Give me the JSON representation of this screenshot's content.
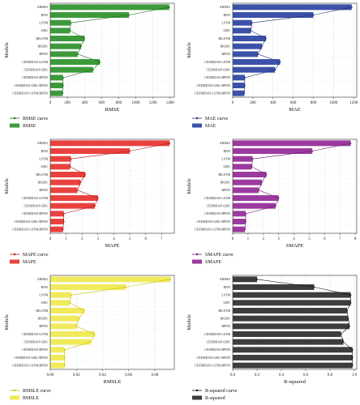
{
  "chart_data": [
    {
      "type": "bar",
      "title": "",
      "xlabel": "RMSE",
      "ylabel": "Models",
      "categories": [
        "ARIMA",
        "RNN",
        "LSTM",
        "GRU",
        "BILSTM",
        "BIGRU",
        "BPNN",
        "CEEMDAN-LSTM",
        "CEEMDAN-GRU",
        "CEEMDAN-BPNN",
        "CEEMDAN-GRU-BPNN",
        "CEEMDAN-LSTM-BPNN"
      ],
      "values": [
        1390,
        920,
        240,
        230,
        400,
        360,
        320,
        580,
        500,
        150,
        150,
        145
      ],
      "xlim": [
        0,
        1450
      ],
      "xticks": [
        0,
        200,
        400,
        600,
        800,
        1000,
        1200,
        1400
      ],
      "series": [
        {
          "name": "RMSE curve"
        },
        {
          "name": "RMSE"
        }
      ],
      "color": "#3c9a3a",
      "curve_color": "#1b6e1b",
      "grid": true,
      "legend": "bottom-left"
    },
    {
      "type": "bar",
      "title": "",
      "xlabel": "MAE",
      "ylabel": "Models",
      "categories": [
        "ARIMA",
        "RNN",
        "LSTM",
        "GRU",
        "BILSTM",
        "BIGRU",
        "BPNN",
        "CEEMDAN-LSTM",
        "CEEMDAN-GRU",
        "CEEMDAN-BPNN",
        "CEEMDAN-GRU-BPNN",
        "CEEMDAN-LSTM-BPNN"
      ],
      "values": [
        1180,
        800,
        190,
        180,
        330,
        290,
        250,
        470,
        420,
        120,
        120,
        115
      ],
      "xlim": [
        0,
        1230
      ],
      "xticks": [
        0,
        200,
        400,
        600,
        800,
        1000,
        1200
      ],
      "series": [
        {
          "name": "MAE curve"
        },
        {
          "name": "MAE"
        }
      ],
      "color": "#3c51a8",
      "curve_color": "#1e2f7a",
      "grid": true,
      "legend": "bottom-left"
    },
    {
      "type": "bar",
      "title": "",
      "xlabel": "MAPE",
      "ylabel": "Models",
      "categories": [
        "ARIMA",
        "RNN",
        "LSTM",
        "GRU",
        "BILSTM",
        "BIGRU",
        "BPNN",
        "CEEMDAN-LSTM",
        "CEEMDAN-GRU",
        "CEEMDAN-BPNN",
        "CEEMDAN-GRU-BPNN",
        "CEEMDAN-LSTM-BPNN"
      ],
      "values": [
        7.5,
        5.0,
        1.3,
        1.25,
        2.2,
        1.9,
        1.7,
        3.0,
        2.8,
        0.85,
        0.85,
        0.8
      ],
      "xlim": [
        0,
        7.8
      ],
      "xticks": [
        0,
        1,
        2,
        3,
        4,
        5,
        6,
        7
      ],
      "series": [
        {
          "name": "MAPE curve"
        },
        {
          "name": "MAPE"
        }
      ],
      "color": "#e8423f",
      "curve_color": "#b01818",
      "grid": true,
      "legend": "bottom-left"
    },
    {
      "type": "bar",
      "title": "",
      "xlabel": "SMAPE",
      "ylabel": "Models",
      "categories": [
        "ARIMA",
        "RNN",
        "LSTM",
        "GRU",
        "BILSTM",
        "BIGRU",
        "BPNN",
        "CEEMDAN-LSTM",
        "CEEMDAN-GRU",
        "CEEMDAN-BPNN",
        "CEEMDAN-GRU-BPNN",
        "CEEMDAN-LSTM-BPNN"
      ],
      "values": [
        7.7,
        5.2,
        1.3,
        1.25,
        2.2,
        1.9,
        1.7,
        3.0,
        2.8,
        0.85,
        0.85,
        0.8
      ],
      "xlim": [
        0,
        8.1
      ],
      "xticks": [
        0,
        1,
        2,
        3,
        4,
        5,
        6,
        7,
        8
      ],
      "series": [
        {
          "name": "SMAPE curve"
        },
        {
          "name": "SMAPE"
        }
      ],
      "color": "#9b3a9e",
      "curve_color": "#6a1a6e",
      "grid": true,
      "legend": "bottom-left"
    },
    {
      "type": "bar",
      "title": "",
      "xlabel": "RMSLE",
      "ylabel": "Models",
      "categories": [
        "ARIMA",
        "RNN",
        "LSTM",
        "GRU",
        "BILSTM",
        "BIGRU",
        "BPNN",
        "CEEMDAN-LSTM",
        "CEEMDAN-GRU",
        "CEEMDAN-BPNN",
        "CEEMDAN-GRU-BPNN",
        "CEEMDAN-LSTM-BPNN"
      ],
      "values": [
        0.092,
        0.058,
        0.016,
        0.015,
        0.026,
        0.022,
        0.02,
        0.034,
        0.031,
        0.011,
        0.011,
        0.011
      ],
      "xlim": [
        0,
        0.095
      ],
      "xticks": [
        0.0,
        0.02,
        0.04,
        0.06,
        0.08
      ],
      "tick_format": 2,
      "series": [
        {
          "name": "RMSLE curve"
        },
        {
          "name": "RMSLE"
        }
      ],
      "color": "#f1ea5a",
      "curve_color": "#c9c000",
      "grid": true,
      "legend": "bottom-left"
    },
    {
      "type": "bar",
      "title": "",
      "xlabel": "R-squared",
      "ylabel": "Models",
      "categories": [
        "ARIMA",
        "RNN",
        "LSTM",
        "GRU",
        "BILSTM",
        "BIGRU",
        "BPNN",
        "CEEMDAN-LSTM",
        "CEEMDAN-GRU",
        "CEEMDAN-BPNN",
        "CEEMDAN-GRU-BPNN",
        "CEEMDAN-LSTM-BPNN"
      ],
      "values": [
        0.2,
        0.67,
        0.97,
        0.97,
        0.94,
        0.95,
        0.96,
        0.89,
        0.91,
        0.985,
        0.985,
        0.985
      ],
      "xlim": [
        0,
        1.02
      ],
      "xticks": [
        0.0,
        0.2,
        0.4,
        0.6,
        0.8,
        1.0
      ],
      "tick_format": 1,
      "series": [
        {
          "name": "R-squared curve"
        },
        {
          "name": "R-squared"
        }
      ],
      "color": "#3d3d3d",
      "curve_color": "#111111",
      "grid": true,
      "legend": "bottom-left"
    }
  ]
}
